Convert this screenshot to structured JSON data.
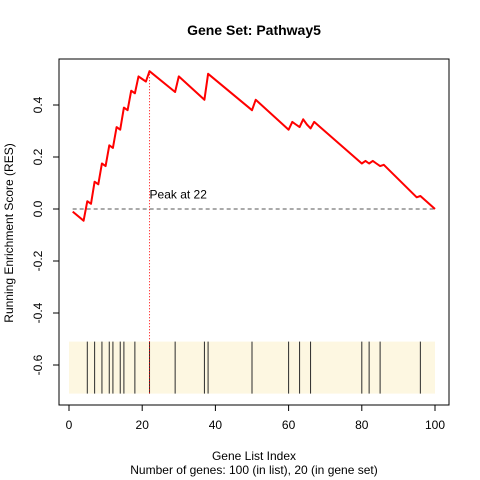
{
  "chart_data": {
    "type": "line",
    "title": "Gene Set:  Pathway5",
    "xlabel": "Gene List Index",
    "subtitle": "Number of genes: 100 (in list), 20 (in gene set)",
    "ylabel": "Running Enrichment Score (RES)",
    "xlim": [
      0,
      100
    ],
    "ylim": [
      -0.72,
      0.58
    ],
    "xticks": [
      "0",
      "20",
      "40",
      "60",
      "80",
      "100"
    ],
    "yticks": [
      "-0.6",
      "-0.4",
      "-0.2",
      "0.0",
      "0.2",
      "0.4"
    ],
    "series": [
      {
        "color": "#ff0000",
        "x": [
          1,
          4,
          5,
          6,
          7,
          8,
          9,
          10,
          11,
          12,
          13,
          14,
          15,
          16,
          17,
          18,
          19,
          20,
          21,
          22,
          29,
          30,
          37,
          38,
          50,
          51,
          60,
          61,
          62,
          63,
          64,
          65,
          66,
          67,
          80,
          81,
          82,
          83,
          84,
          85,
          86,
          95,
          96,
          100
        ],
        "y": [
          -0.01,
          -0.045,
          0.03,
          0.02,
          0.105,
          0.095,
          0.175,
          0.165,
          0.245,
          0.235,
          0.315,
          0.305,
          0.39,
          0.38,
          0.455,
          0.445,
          0.51,
          0.5,
          0.49,
          0.53,
          0.45,
          0.51,
          0.42,
          0.52,
          0.38,
          0.42,
          0.305,
          0.335,
          0.325,
          0.315,
          0.345,
          0.325,
          0.31,
          0.335,
          0.175,
          0.185,
          0.175,
          0.185,
          0.175,
          0.165,
          0.17,
          0.045,
          0.05,
          0.0
        ]
      }
    ],
    "baseline": 0.0,
    "peak": {
      "x": 22,
      "y": 0.53,
      "label": "Peak at 22"
    },
    "hits": [
      5,
      7,
      9,
      11,
      12,
      14,
      15,
      18,
      22,
      29,
      37,
      38,
      50,
      60,
      63,
      66,
      80,
      82,
      85,
      96
    ],
    "hit_band": {
      "y_low": -0.71,
      "y_high": -0.51,
      "color": "#fdf7e1"
    }
  }
}
